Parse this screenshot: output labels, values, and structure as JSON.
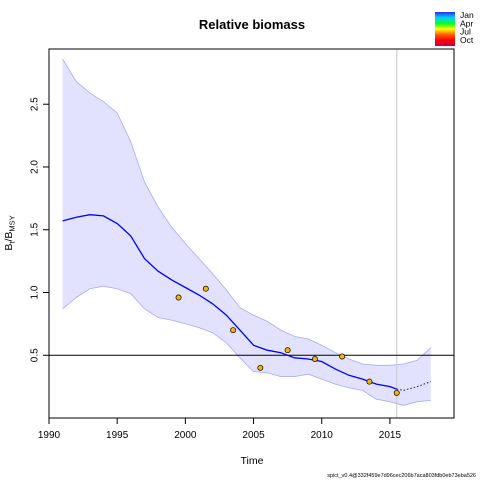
{
  "chart_data": {
    "type": "line",
    "title": "Relative biomass",
    "xlabel": "Time",
    "ylabel": "B_t/B_MSY",
    "xlim": [
      1990,
      2019.7
    ],
    "ylim": [
      0,
      2.94
    ],
    "xticks": [
      "1990",
      "1995",
      "2000",
      "2005",
      "2010",
      "2015"
    ],
    "yticks": [
      "0.5",
      "1.0",
      "1.5",
      "2.0",
      "2.5"
    ],
    "ref_line_y": 0.5,
    "vline_x": 2015.5,
    "estimate": {
      "x": [
        1991,
        1992,
        1993,
        1994,
        1995,
        1996,
        1997,
        1998,
        1999,
        2000,
        2001,
        2002,
        2003,
        2004,
        2005,
        2006,
        2007,
        2008,
        2009,
        2010,
        2011,
        2012,
        2013,
        2014,
        2015,
        2015.5
      ],
      "y": [
        1.57,
        1.6,
        1.62,
        1.61,
        1.55,
        1.45,
        1.27,
        1.17,
        1.1,
        1.04,
        0.98,
        0.91,
        0.82,
        0.7,
        0.58,
        0.54,
        0.52,
        0.48,
        0.47,
        0.45,
        0.39,
        0.34,
        0.31,
        0.27,
        0.25,
        0.23
      ]
    },
    "forecast": {
      "x": [
        2015.5,
        2016,
        2017,
        2018
      ],
      "y": [
        0.23,
        0.22,
        0.25,
        0.29
      ]
    },
    "ci_upper": {
      "x": [
        1991,
        1992,
        1993,
        1994,
        1995,
        1996,
        1997,
        1998,
        1999,
        2000,
        2001,
        2002,
        2003,
        2004,
        2005,
        2006,
        2007,
        2008,
        2009,
        2010,
        2011,
        2012,
        2013,
        2014,
        2015,
        2016,
        2017,
        2018
      ],
      "y": [
        2.86,
        2.68,
        2.59,
        2.52,
        2.43,
        2.2,
        1.88,
        1.68,
        1.52,
        1.39,
        1.27,
        1.15,
        1.02,
        0.88,
        0.82,
        0.77,
        0.7,
        0.65,
        0.63,
        0.58,
        0.52,
        0.47,
        0.43,
        0.42,
        0.42,
        0.43,
        0.46,
        0.56
      ]
    },
    "ci_lower": {
      "x": [
        1991,
        1992,
        1993,
        1994,
        1995,
        1996,
        1997,
        1998,
        1999,
        2000,
        2001,
        2002,
        2003,
        2004,
        2005,
        2006,
        2007,
        2008,
        2009,
        2010,
        2011,
        2012,
        2013,
        2014,
        2015,
        2016,
        2017,
        2018
      ],
      "y": [
        0.87,
        0.96,
        1.03,
        1.05,
        1.03,
        0.99,
        0.87,
        0.8,
        0.78,
        0.75,
        0.72,
        0.68,
        0.6,
        0.48,
        0.37,
        0.36,
        0.33,
        0.33,
        0.35,
        0.31,
        0.27,
        0.24,
        0.22,
        0.15,
        0.13,
        0.1,
        0.13,
        0.14
      ]
    },
    "observations": {
      "x": [
        1999.5,
        2001.5,
        2003.5,
        2005.5,
        2007.5,
        2009.5,
        2011.5,
        2013.5,
        2015.5
      ],
      "y": [
        0.96,
        1.03,
        0.7,
        0.4,
        0.54,
        0.47,
        0.49,
        0.29,
        0.2
      ]
    },
    "legend": [
      "Jan",
      "Apr",
      "Jul",
      "Oct"
    ],
    "colors": {
      "line": "#0000ff",
      "band": "#e2e2ff",
      "band_edge": "#a8a8ff",
      "point_fill": "#f2b700",
      "vline": "#c8c8c8",
      "legend_stops": [
        "#2a2aff",
        "#00d2ff",
        "#00ff26",
        "#ffff00",
        "#ff5a00",
        "#ff0000",
        "#b4005a"
      ]
    }
  },
  "footer": "spict_v0.4@332f459e7d96cec206b7aca803fdb0eb73eba526"
}
